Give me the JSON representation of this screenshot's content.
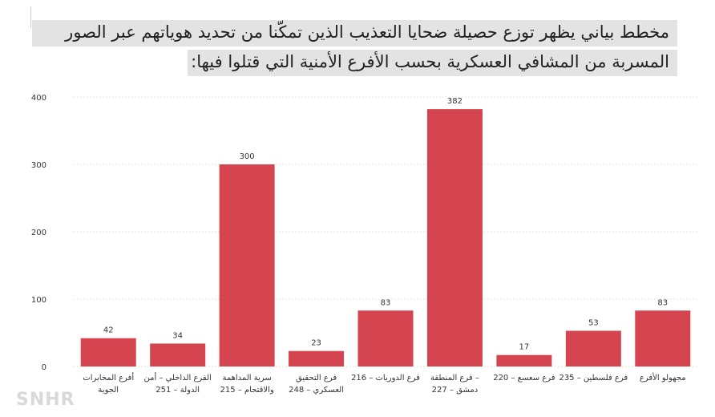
{
  "title_lines": [
    "مخطط بياني يظهر توزع حصيلة ضحايا التعذيب الذين تمكّنا من تحديد هوياتهم عبر الصور",
    "المسربة من المشافي العسكرية بحسب الأفرع الأمنية التي قتلوا فيها:"
  ],
  "watermark": "SNHR",
  "chart_data": {
    "type": "bar",
    "categories": [
      [
        "أفرع المخابرات",
        "الجوية"
      ],
      [
        "القرع الداخلي – أمن",
        "الدولة – 251"
      ],
      [
        "سرية المداهمة",
        "والاقتحام – 215"
      ],
      [
        "فرع التحقيق",
        "العسكري – 248"
      ],
      [
        "فرع الدوريات – 216"
      ],
      [
        "– فرع المنطقة",
        "دمشق – 227"
      ],
      [
        "فرع سعسع – 220"
      ],
      [
        "فرع فلسطين – 235"
      ],
      [
        "مجهولو الأفرع"
      ]
    ],
    "values": [
      42,
      34,
      300,
      23,
      83,
      382,
      17,
      53,
      83
    ],
    "yticks": [
      0,
      100,
      200,
      300,
      400
    ],
    "ylim": [
      0,
      400
    ],
    "bar_color": "#d5454f",
    "grid": true
  }
}
